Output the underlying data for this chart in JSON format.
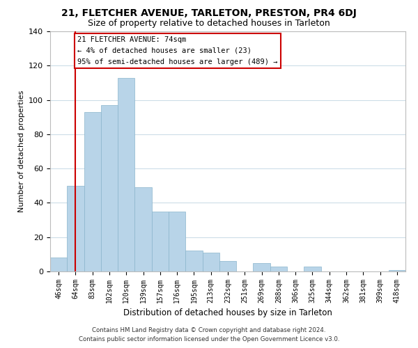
{
  "title": "21, FLETCHER AVENUE, TARLETON, PRESTON, PR4 6DJ",
  "subtitle": "Size of property relative to detached houses in Tarleton",
  "xlabel": "Distribution of detached houses by size in Tarleton",
  "ylabel": "Number of detached properties",
  "bin_labels": [
    "46sqm",
    "64sqm",
    "83sqm",
    "102sqm",
    "120sqm",
    "139sqm",
    "157sqm",
    "176sqm",
    "195sqm",
    "213sqm",
    "232sqm",
    "251sqm",
    "269sqm",
    "288sqm",
    "306sqm",
    "325sqm",
    "344sqm",
    "362sqm",
    "381sqm",
    "399sqm",
    "418sqm"
  ],
  "bar_heights": [
    8,
    50,
    93,
    97,
    113,
    49,
    35,
    35,
    12,
    11,
    6,
    0,
    5,
    3,
    0,
    3,
    0,
    0,
    0,
    0,
    1
  ],
  "bar_color": "#b8d4e8",
  "bar_edge_color": "#8ab4cc",
  "ylim": [
    0,
    140
  ],
  "yticks": [
    0,
    20,
    40,
    60,
    80,
    100,
    120,
    140
  ],
  "vline_x": 1.0,
  "vline_color": "#cc0000",
  "annotation_title": "21 FLETCHER AVENUE: 74sqm",
  "annotation_line1": "← 4% of detached houses are smaller (23)",
  "annotation_line2": "95% of semi-detached houses are larger (489) →",
  "annotation_box_color": "#ffffff",
  "annotation_box_edge_color": "#cc0000",
  "footer_line1": "Contains HM Land Registry data © Crown copyright and database right 2024.",
  "footer_line2": "Contains public sector information licensed under the Open Government Licence v3.0.",
  "background_color": "#ffffff",
  "grid_color": "#ccdde8",
  "title_fontsize": 10,
  "subtitle_fontsize": 9,
  "ylabel_fontsize": 8,
  "xlabel_fontsize": 8.5
}
